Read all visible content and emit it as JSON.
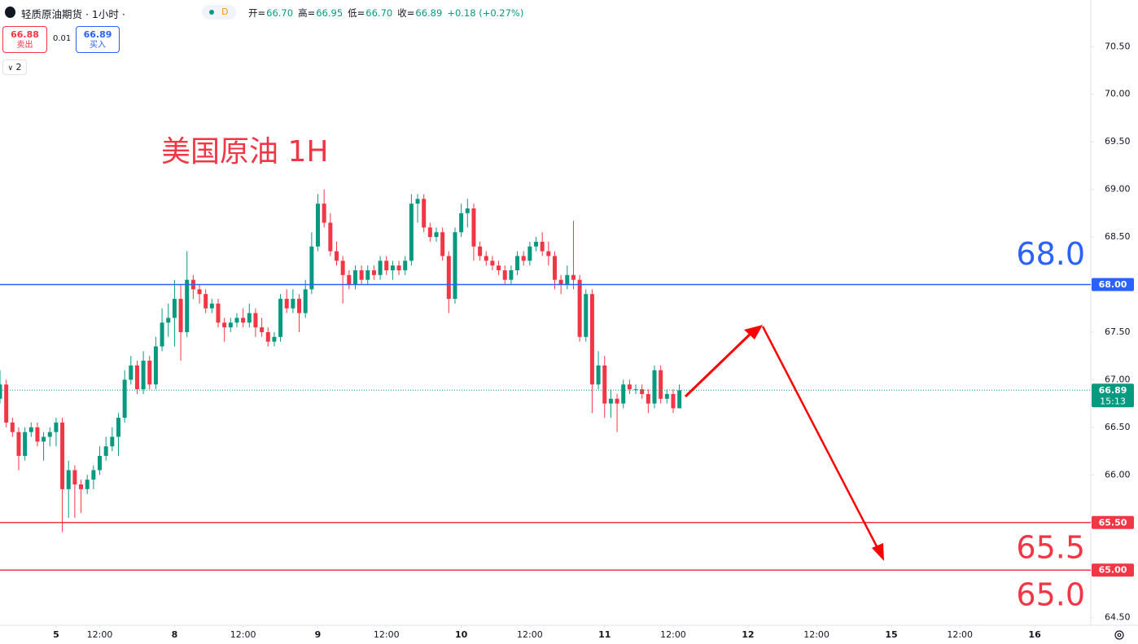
{
  "header": {
    "symbol": "轻质原油期货 · 1小时 ·",
    "interval_badge": "D",
    "readout": [
      {
        "label": "开=",
        "value": "66.70"
      },
      {
        "label": "高=",
        "value": "66.95"
      },
      {
        "label": "低=",
        "value": "66.70"
      },
      {
        "label": "收=",
        "value": "66.89"
      }
    ],
    "change": "+0.18 (+0.27%)"
  },
  "trade": {
    "sell_price": "66.88",
    "sell_label": "卖出",
    "spread": "0.01",
    "buy_price": "66.89",
    "buy_label": "买入",
    "indicators": "2"
  },
  "chart_data": {
    "type": "candlestick",
    "title": "美国原油 1H",
    "up_color": "#089981",
    "down_color": "#f23645",
    "xlim": [
      0,
      175
    ],
    "ylim": [
      64.42,
      70.99
    ],
    "xticks": [
      {
        "value": 9,
        "label": "5"
      },
      {
        "value": 16,
        "label": "12:00"
      },
      {
        "value": 28,
        "label": "8"
      },
      {
        "value": 39,
        "label": "12:00"
      },
      {
        "value": 51,
        "label": "9"
      },
      {
        "value": 62,
        "label": "12:00"
      },
      {
        "value": 74,
        "label": "10"
      },
      {
        "value": 85,
        "label": "12:00"
      },
      {
        "value": 97,
        "label": "11"
      },
      {
        "value": 108,
        "label": "12:00"
      },
      {
        "value": 120,
        "label": "12"
      },
      {
        "value": 131,
        "label": "12:00"
      },
      {
        "value": 143,
        "label": "15"
      },
      {
        "value": 154,
        "label": "12:00"
      },
      {
        "value": 166,
        "label": "16"
      }
    ],
    "yticks": [
      {
        "value": 64.5,
        "label": "64.50"
      },
      {
        "value": 65,
        "label": "65.00"
      },
      {
        "value": 65.5,
        "label": "65.50"
      },
      {
        "value": 66,
        "label": "66.00"
      },
      {
        "value": 66.5,
        "label": "66.50"
      },
      {
        "value": 67,
        "label": "67.00"
      },
      {
        "value": 67.5,
        "label": "67.50"
      },
      {
        "value": 68,
        "label": "68.00"
      },
      {
        "value": 68.5,
        "label": "68.50"
      },
      {
        "value": 69,
        "label": "69.00"
      },
      {
        "value": 69.5,
        "label": "69.50"
      },
      {
        "value": 70,
        "label": "70.00"
      },
      {
        "value": 70.5,
        "label": "70.50"
      }
    ],
    "hlines": [
      {
        "value": 68,
        "label": "68.0",
        "tag": "68.00",
        "color": "#2962ff"
      },
      {
        "value": 65.5,
        "label": "65.5",
        "tag": "65.50",
        "color": "#f23645"
      },
      {
        "value": 65,
        "label": "65.0",
        "tag": "65.00",
        "color": "#f23645"
      }
    ],
    "last_price": {
      "value": 66.89,
      "label": "66.89",
      "countdown": "15:13"
    },
    "x": [
      0,
      1,
      2,
      3,
      4,
      5,
      6,
      7,
      8,
      9,
      10,
      11,
      12,
      13,
      14,
      15,
      16,
      17,
      18,
      19,
      20,
      21,
      22,
      23,
      24,
      25,
      26,
      27,
      28,
      29,
      30,
      31,
      32,
      33,
      34,
      35,
      36,
      37,
      38,
      39,
      40,
      41,
      42,
      43,
      44,
      45,
      46,
      47,
      48,
      49,
      50,
      51,
      52,
      53,
      54,
      55,
      56,
      57,
      58,
      59,
      60,
      61,
      62,
      63,
      64,
      65,
      66,
      67,
      68,
      69,
      70,
      71,
      72,
      73,
      74,
      75,
      76,
      77,
      78,
      79,
      80,
      81,
      82,
      83,
      84,
      85,
      86,
      87,
      88,
      89,
      90,
      91,
      92,
      93,
      94,
      95,
      96,
      97,
      98,
      99,
      100,
      101,
      102,
      103,
      104,
      105,
      106,
      107,
      108,
      109
    ],
    "ohlc": [
      [
        66.8,
        67.1,
        66.75,
        66.95
      ],
      [
        66.95,
        67.0,
        66.5,
        66.55
      ],
      [
        66.55,
        66.6,
        66.4,
        66.45
      ],
      [
        66.45,
        66.5,
        66.05,
        66.2
      ],
      [
        66.2,
        66.5,
        66.15,
        66.45
      ],
      [
        66.45,
        66.55,
        66.4,
        66.5
      ],
      [
        66.5,
        66.55,
        66.3,
        66.35
      ],
      [
        66.35,
        66.45,
        66.15,
        66.4
      ],
      [
        66.4,
        66.5,
        66.3,
        66.45
      ],
      [
        66.45,
        66.6,
        66.3,
        66.55
      ],
      [
        66.55,
        66.6,
        65.4,
        65.85
      ],
      [
        65.85,
        66.15,
        65.55,
        66.05
      ],
      [
        66.05,
        66.1,
        65.55,
        65.9
      ],
      [
        65.9,
        65.95,
        65.6,
        65.85
      ],
      [
        65.85,
        66.0,
        65.8,
        65.95
      ],
      [
        65.95,
        66.1,
        65.85,
        66.05
      ],
      [
        66.05,
        66.3,
        66.0,
        66.2
      ],
      [
        66.2,
        66.4,
        66.15,
        66.3
      ],
      [
        66.3,
        66.5,
        66.25,
        66.4
      ],
      [
        66.4,
        66.65,
        66.2,
        66.6
      ],
      [
        66.6,
        67.1,
        66.55,
        67.0
      ],
      [
        67.0,
        67.25,
        66.95,
        67.15
      ],
      [
        67.15,
        67.2,
        66.85,
        66.9
      ],
      [
        66.9,
        67.3,
        66.85,
        67.2
      ],
      [
        67.2,
        67.25,
        66.9,
        66.95
      ],
      [
        66.95,
        67.45,
        66.9,
        67.35
      ],
      [
        67.35,
        67.75,
        67.3,
        67.6
      ],
      [
        67.6,
        67.8,
        67.45,
        67.65
      ],
      [
        67.65,
        68.05,
        67.35,
        67.85
      ],
      [
        67.85,
        68.0,
        67.2,
        67.5
      ],
      [
        67.5,
        68.35,
        67.45,
        68.05
      ],
      [
        68.05,
        68.1,
        67.85,
        67.95
      ],
      [
        67.95,
        68.0,
        67.8,
        67.9
      ],
      [
        67.9,
        67.95,
        67.7,
        67.75
      ],
      [
        67.75,
        67.85,
        67.7,
        67.8
      ],
      [
        67.8,
        67.85,
        67.55,
        67.6
      ],
      [
        67.6,
        67.65,
        67.4,
        67.55
      ],
      [
        67.55,
        67.65,
        67.5,
        67.6
      ],
      [
        67.6,
        67.7,
        67.55,
        67.65
      ],
      [
        67.65,
        67.75,
        67.55,
        67.6
      ],
      [
        67.6,
        67.8,
        67.55,
        67.7
      ],
      [
        67.7,
        67.75,
        67.45,
        67.55
      ],
      [
        67.55,
        67.65,
        67.45,
        67.5
      ],
      [
        67.5,
        67.55,
        67.35,
        67.4
      ],
      [
        67.4,
        67.5,
        67.35,
        67.45
      ],
      [
        67.45,
        67.9,
        67.4,
        67.85
      ],
      [
        67.85,
        67.95,
        67.7,
        67.75
      ],
      [
        67.75,
        67.95,
        67.7,
        67.85
      ],
      [
        67.85,
        67.9,
        67.5,
        67.7
      ],
      [
        67.7,
        68.05,
        67.65,
        67.95
      ],
      [
        67.95,
        68.55,
        67.9,
        68.4
      ],
      [
        68.4,
        68.95,
        68.35,
        68.85
      ],
      [
        68.85,
        69.0,
        68.6,
        68.65
      ],
      [
        68.65,
        68.75,
        68.3,
        68.35
      ],
      [
        68.35,
        68.45,
        68.2,
        68.25
      ],
      [
        68.25,
        68.3,
        67.8,
        68.1
      ],
      [
        68.1,
        68.15,
        67.95,
        68.0
      ],
      [
        68.0,
        68.2,
        67.95,
        68.15
      ],
      [
        68.15,
        68.2,
        68.0,
        68.05
      ],
      [
        68.05,
        68.2,
        68.0,
        68.15
      ],
      [
        68.15,
        68.2,
        68.05,
        68.1
      ],
      [
        68.1,
        68.3,
        68.05,
        68.25
      ],
      [
        68.25,
        68.3,
        68.1,
        68.15
      ],
      [
        68.15,
        68.25,
        68.05,
        68.2
      ],
      [
        68.2,
        68.25,
        68.1,
        68.15
      ],
      [
        68.15,
        68.3,
        68.1,
        68.25
      ],
      [
        68.25,
        68.95,
        68.2,
        68.85
      ],
      [
        68.85,
        68.95,
        68.65,
        68.9
      ],
      [
        68.9,
        68.95,
        68.55,
        68.6
      ],
      [
        68.6,
        68.65,
        68.45,
        68.5
      ],
      [
        68.5,
        68.6,
        68.45,
        68.55
      ],
      [
        68.55,
        68.6,
        68.25,
        68.3
      ],
      [
        68.3,
        68.35,
        67.7,
        67.85
      ],
      [
        67.85,
        68.6,
        67.8,
        68.55
      ],
      [
        68.55,
        68.85,
        68.5,
        68.75
      ],
      [
        68.75,
        68.9,
        68.6,
        68.8
      ],
      [
        68.8,
        68.85,
        68.25,
        68.4
      ],
      [
        68.4,
        68.45,
        68.25,
        68.3
      ],
      [
        68.3,
        68.35,
        68.2,
        68.25
      ],
      [
        68.25,
        68.3,
        68.15,
        68.2
      ],
      [
        68.2,
        68.25,
        68.1,
        68.15
      ],
      [
        68.15,
        68.2,
        68.0,
        68.05
      ],
      [
        68.05,
        68.2,
        68.0,
        68.15
      ],
      [
        68.15,
        68.35,
        68.1,
        68.3
      ],
      [
        68.3,
        68.35,
        68.2,
        68.25
      ],
      [
        68.25,
        68.45,
        68.2,
        68.4
      ],
      [
        68.4,
        68.5,
        68.35,
        68.45
      ],
      [
        68.45,
        68.55,
        68.3,
        68.35
      ],
      [
        68.35,
        68.45,
        68.2,
        68.3
      ],
      [
        68.3,
        68.35,
        67.95,
        68.05
      ],
      [
        68.05,
        68.1,
        67.9,
        68.0
      ],
      [
        68.0,
        68.2,
        67.95,
        68.1
      ],
      [
        68.1,
        68.67,
        67.95,
        68.05
      ],
      [
        68.05,
        68.1,
        67.4,
        67.45
      ],
      [
        67.45,
        67.95,
        67.4,
        67.9
      ],
      [
        67.9,
        67.95,
        66.65,
        66.95
      ],
      [
        66.95,
        67.3,
        66.9,
        67.15
      ],
      [
        67.15,
        67.25,
        66.6,
        66.75
      ],
      [
        66.75,
        66.9,
        66.6,
        66.8
      ],
      [
        66.8,
        66.85,
        66.45,
        66.75
      ],
      [
        66.75,
        67.0,
        66.7,
        66.95
      ],
      [
        66.95,
        67.0,
        66.85,
        66.9
      ],
      [
        66.9,
        66.95,
        66.85,
        66.9
      ],
      [
        66.9,
        66.95,
        66.8,
        66.85
      ],
      [
        66.85,
        66.9,
        66.65,
        66.75
      ],
      [
        66.75,
        67.15,
        66.7,
        67.1
      ],
      [
        67.1,
        67.15,
        66.75,
        66.8
      ],
      [
        66.8,
        66.9,
        66.75,
        66.85
      ],
      [
        66.85,
        66.9,
        66.65,
        66.7
      ],
      [
        66.7,
        66.95,
        66.7,
        66.89
      ]
    ]
  }
}
